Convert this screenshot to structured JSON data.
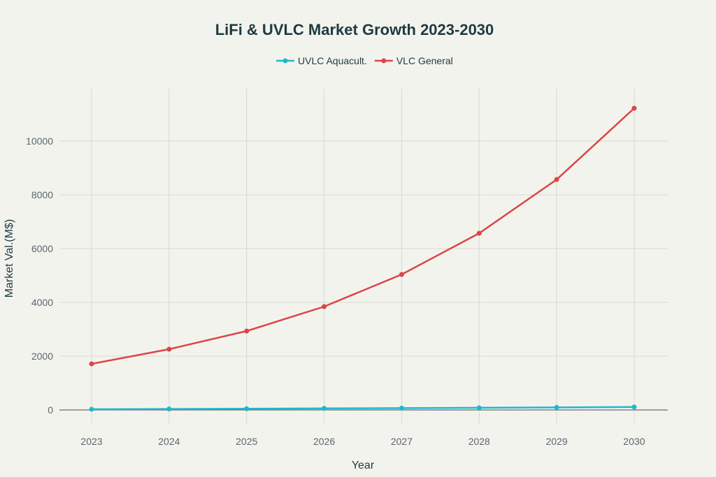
{
  "chart_data": {
    "type": "line",
    "title": "LiFi & UVLC Market Growth 2023-2030",
    "xlabel": "Year",
    "ylabel": "Market Val.(M$)",
    "x": [
      2023,
      2024,
      2025,
      2026,
      2027,
      2028,
      2029,
      2030
    ],
    "x_ticks": [
      "2023",
      "2024",
      "2025",
      "2026",
      "2027",
      "2028",
      "2029",
      "2030"
    ],
    "y_ticks": [
      "0",
      "2000",
      "4000",
      "6000",
      "8000",
      "10000"
    ],
    "y_tick_values": [
      0,
      2000,
      4000,
      6000,
      8000,
      10000
    ],
    "ylim": [
      -1000,
      11800
    ],
    "xlim": [
      2022.6,
      2030.43
    ],
    "grid": true,
    "legend_placement": "top-center",
    "series": [
      {
        "name": "UVLC Aquacult.",
        "color": "#1fb8cd",
        "values": [
          27,
          36,
          46,
          58,
          68,
          80,
          95,
          110
        ]
      },
      {
        "name": "VLC General",
        "color": "#db4545",
        "values": [
          1714,
          2260,
          2935,
          3844,
          5039,
          6571,
          8571,
          11221
        ]
      }
    ]
  }
}
